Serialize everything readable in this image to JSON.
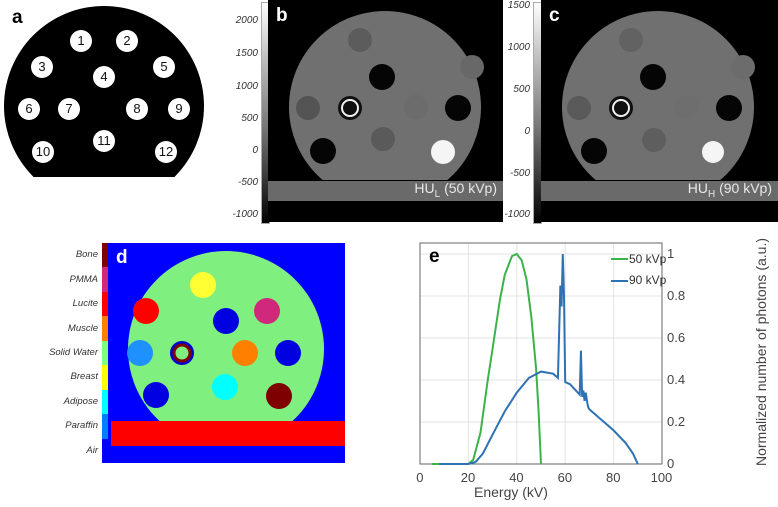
{
  "figure": {
    "panels": {
      "a": {
        "letter": "a",
        "insert_numbers": [
          "1",
          "2",
          "3",
          "4",
          "5",
          "6",
          "7",
          "8",
          "9",
          "10",
          "11",
          "12"
        ]
      },
      "b": {
        "letter": "b",
        "label_main": "HU",
        "label_sub": "L",
        "label_rest": " (50 kVp)",
        "colorbar_ticks": [
          "2000",
          "1500",
          "1000",
          "500",
          "0",
          "-500",
          "-1000"
        ]
      },
      "c": {
        "letter": "c",
        "label_main": "HU",
        "label_sub": "H",
        "label_rest": " (90 kVp)",
        "colorbar_ticks": [
          "1500",
          "1000",
          "500",
          "0",
          "-500",
          "-1000"
        ]
      },
      "d": {
        "letter": "d",
        "materials": [
          {
            "name": "Bone",
            "color": "#7f0000"
          },
          {
            "name": "PMMA",
            "color": "#d0287a"
          },
          {
            "name": "Lucite",
            "color": "#ff0000"
          },
          {
            "name": "Muscle",
            "color": "#ff7f00"
          },
          {
            "name": "Solid Water",
            "color": "#7fff7f"
          },
          {
            "name": "Breast",
            "color": "#ffff00"
          },
          {
            "name": "Adipose",
            "color": "#00ffff"
          },
          {
            "name": "Paraffin",
            "color": "#007fff"
          },
          {
            "name": "Air",
            "color": "#0000ff"
          }
        ]
      },
      "e": {
        "letter": "e"
      }
    }
  },
  "chart_data": {
    "type": "line",
    "title": "",
    "xlabel": "Energy (kV)",
    "ylabel": "Normalized number of photons (a.u.)",
    "xlim": [
      0,
      100
    ],
    "ylim": [
      0,
      1
    ],
    "x_ticks": [
      "0",
      "20",
      "40",
      "60",
      "80",
      "100"
    ],
    "y_ticks": [
      "0",
      "0.2",
      "0.4",
      "0.6",
      "0.8",
      "1"
    ],
    "grid": true,
    "legend_position": "upper right",
    "series": [
      {
        "name": "50 kVp",
        "color": "#3cb34a",
        "x": [
          5,
          20,
          22,
          25,
          28,
          30,
          33,
          35,
          38,
          40,
          42,
          44,
          46,
          48,
          49,
          50
        ],
        "y": [
          0,
          0,
          0.02,
          0.15,
          0.4,
          0.55,
          0.78,
          0.9,
          0.99,
          1.0,
          0.97,
          0.88,
          0.7,
          0.45,
          0.25,
          0
        ]
      },
      {
        "name": "90 kVp",
        "color": "#2e72b4",
        "x": [
          8,
          20,
          23,
          26,
          30,
          35,
          40,
          45,
          50,
          55,
          57,
          58,
          58.5,
          59,
          59.5,
          60,
          62,
          66,
          66.5,
          67,
          67.5,
          68,
          68.5,
          69,
          69.5,
          70,
          75,
          80,
          85,
          88,
          90
        ],
        "y": [
          0,
          0,
          0.01,
          0.05,
          0.14,
          0.25,
          0.34,
          0.41,
          0.44,
          0.43,
          0.41,
          0.85,
          0.75,
          1.0,
          0.8,
          0.39,
          0.38,
          0.33,
          0.54,
          0.32,
          0.35,
          0.3,
          0.34,
          0.3,
          0.27,
          0.26,
          0.21,
          0.16,
          0.1,
          0.05,
          0
        ]
      }
    ],
    "legend": [
      "50 kVp",
      "90 kVp"
    ]
  }
}
